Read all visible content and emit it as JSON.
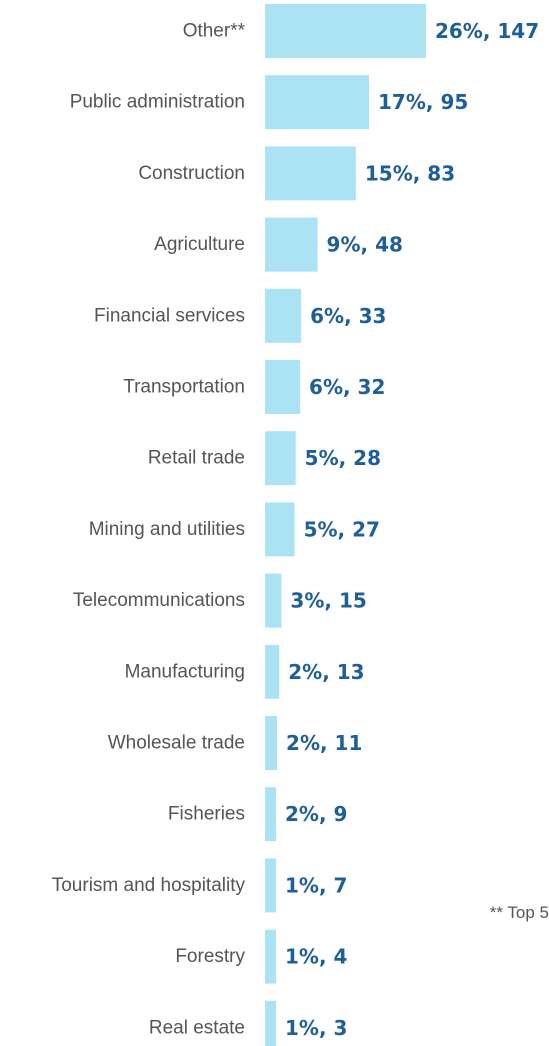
{
  "chart_data": {
    "type": "bar",
    "orientation": "horizontal",
    "categories": [
      "Other**",
      "Public administration",
      "Construction",
      "Agriculture",
      "Financial services",
      "Transportation",
      "Retail trade",
      "Mining and utilities",
      "Telecommunications",
      "Manufacturing",
      "Wholesale trade",
      "Fisheries",
      "Tourism and hospitality",
      "Forestry",
      "Real estate"
    ],
    "values": [
      147,
      95,
      83,
      48,
      33,
      32,
      28,
      27,
      15,
      13,
      11,
      9,
      7,
      4,
      3
    ],
    "data_labels": [
      "26%, 147",
      "17%, 95",
      "15%, 83",
      "9%, 48",
      "6%, 33",
      "6%, 32",
      "5%, 28",
      "5%, 27",
      "3%, 15",
      "2%, 13",
      "2%, 11",
      "2%, 9",
      "1%, 7",
      "1%, 4",
      "1%, 3"
    ],
    "annotation": "** Top 5",
    "grid": false,
    "legend": "none",
    "colors": {
      "bar": "#abe3f4",
      "value_label": "#1f5f99",
      "category_label": "#555555"
    }
  }
}
